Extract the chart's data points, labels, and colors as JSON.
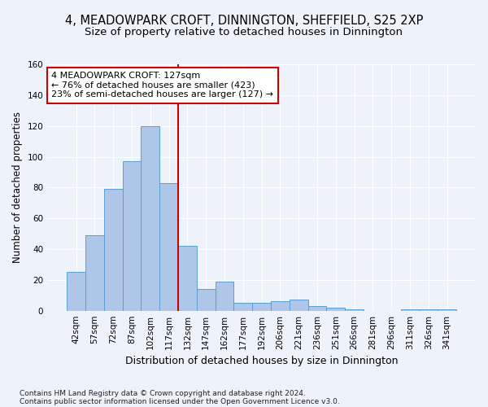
{
  "title": "4, MEADOWPARK CROFT, DINNINGTON, SHEFFIELD, S25 2XP",
  "subtitle": "Size of property relative to detached houses in Dinnington",
  "xlabel": "Distribution of detached houses by size in Dinnington",
  "ylabel": "Number of detached properties",
  "footnote1": "Contains HM Land Registry data © Crown copyright and database right 2024.",
  "footnote2": "Contains public sector information licensed under the Open Government Licence v3.0.",
  "bar_labels": [
    "42sqm",
    "57sqm",
    "72sqm",
    "87sqm",
    "102sqm",
    "117sqm",
    "132sqm",
    "147sqm",
    "162sqm",
    "177sqm",
    "192sqm",
    "206sqm",
    "221sqm",
    "236sqm",
    "251sqm",
    "266sqm",
    "281sqm",
    "296sqm",
    "311sqm",
    "326sqm",
    "341sqm"
  ],
  "bar_values": [
    25,
    49,
    79,
    97,
    120,
    83,
    42,
    14,
    19,
    5,
    5,
    6,
    7,
    3,
    2,
    1,
    0,
    0,
    1,
    1,
    1
  ],
  "bar_color": "#aec6e8",
  "bar_edge_color": "#5a9fd4",
  "annotation_line1": "4 MEADOWPARK CROFT: 127sqm",
  "annotation_line2": "← 76% of detached houses are smaller (423)",
  "annotation_line3": "23% of semi-detached houses are larger (127) →",
  "annotation_box_color": "#ffffff",
  "annotation_box_edge": "#cc0000",
  "red_line_bin": 5.5,
  "ylim": [
    0,
    160
  ],
  "yticks": [
    0,
    20,
    40,
    60,
    80,
    100,
    120,
    140,
    160
  ],
  "background_color": "#eef2fa",
  "grid_color": "#ffffff",
  "title_fontsize": 10.5,
  "subtitle_fontsize": 9.5,
  "xlabel_fontsize": 9,
  "ylabel_fontsize": 8.5,
  "tick_fontsize": 7.5,
  "ann_fontsize": 8
}
